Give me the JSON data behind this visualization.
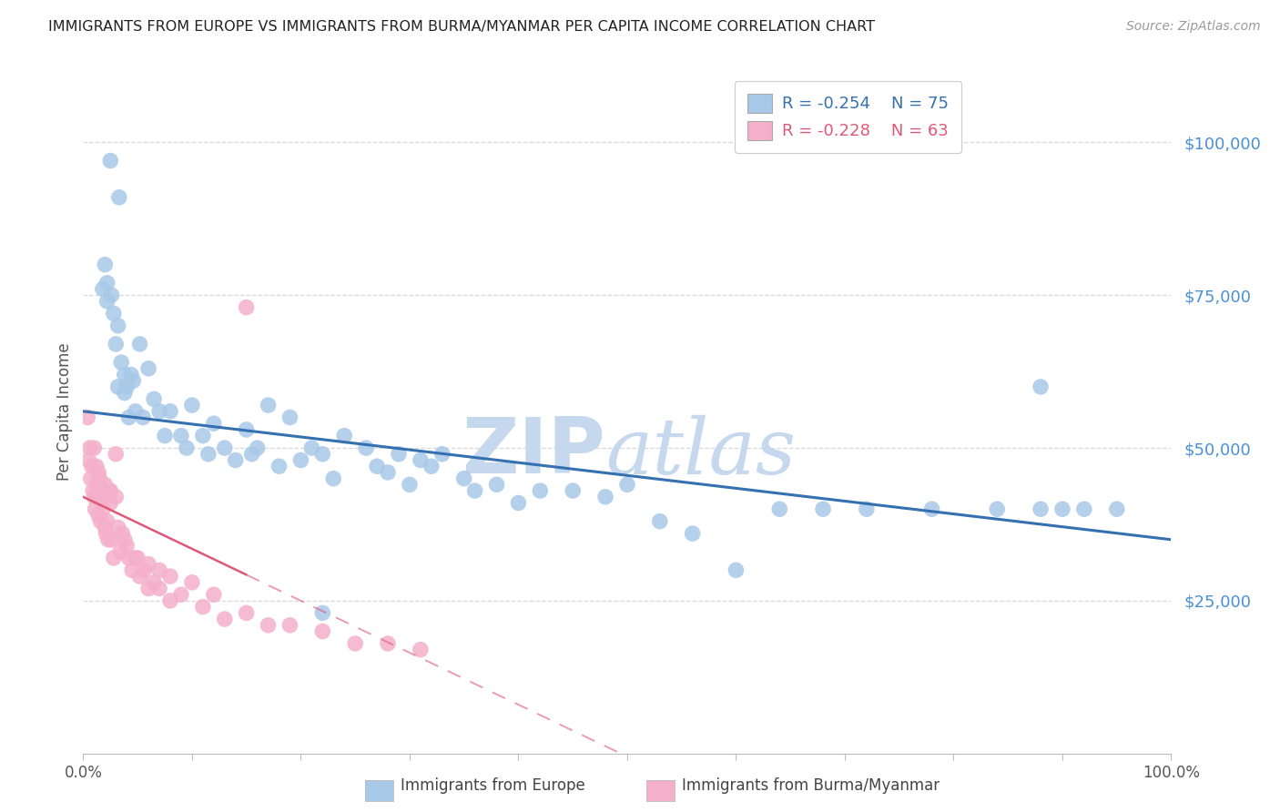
{
  "title": "IMMIGRANTS FROM EUROPE VS IMMIGRANTS FROM BURMA/MYANMAR PER CAPITA INCOME CORRELATION CHART",
  "source": "Source: ZipAtlas.com",
  "ylabel": "Per Capita Income",
  "yticks": [
    0,
    25000,
    50000,
    75000,
    100000
  ],
  "ytick_labels": [
    "",
    "$25,000",
    "$50,000",
    "$75,000",
    "$100,000"
  ],
  "xlim": [
    0.0,
    1.0
  ],
  "ylim": [
    0,
    112000
  ],
  "legend_europe_R": "-0.254",
  "legend_europe_N": "75",
  "legend_burma_R": "-0.228",
  "legend_burma_N": "63",
  "blue_scatter_color": "#a8c8e8",
  "pink_scatter_color": "#f4b0c8",
  "blue_line_color": "#3570b0",
  "pink_line_color": "#e05878",
  "title_color": "#222222",
  "axis_label_color": "#555555",
  "right_tick_color": "#4a90d9",
  "watermark_color": "#c5d8ed",
  "grid_color": "#d8d8d8",
  "europe_x": [
    0.025,
    0.033,
    0.02,
    0.022,
    0.018,
    0.022,
    0.026,
    0.028,
    0.032,
    0.03,
    0.035,
    0.032,
    0.038,
    0.038,
    0.04,
    0.042,
    0.044,
    0.046,
    0.048,
    0.052,
    0.055,
    0.06,
    0.065,
    0.07,
    0.075,
    0.08,
    0.09,
    0.095,
    0.1,
    0.11,
    0.115,
    0.12,
    0.13,
    0.14,
    0.15,
    0.155,
    0.16,
    0.17,
    0.18,
    0.19,
    0.2,
    0.21,
    0.22,
    0.23,
    0.24,
    0.26,
    0.27,
    0.28,
    0.29,
    0.3,
    0.31,
    0.32,
    0.33,
    0.35,
    0.36,
    0.38,
    0.4,
    0.42,
    0.45,
    0.48,
    0.5,
    0.53,
    0.56,
    0.6,
    0.64,
    0.68,
    0.72,
    0.78,
    0.84,
    0.88,
    0.9,
    0.92,
    0.95,
    0.88,
    0.22
  ],
  "europe_y": [
    97000,
    91000,
    80000,
    77000,
    76000,
    74000,
    75000,
    72000,
    70000,
    67000,
    64000,
    60000,
    62000,
    59000,
    60000,
    55000,
    62000,
    61000,
    56000,
    67000,
    55000,
    63000,
    58000,
    56000,
    52000,
    56000,
    52000,
    50000,
    57000,
    52000,
    49000,
    54000,
    50000,
    48000,
    53000,
    49000,
    50000,
    57000,
    47000,
    55000,
    48000,
    50000,
    49000,
    45000,
    52000,
    50000,
    47000,
    46000,
    49000,
    44000,
    48000,
    47000,
    49000,
    45000,
    43000,
    44000,
    41000,
    43000,
    43000,
    42000,
    44000,
    38000,
    36000,
    30000,
    40000,
    40000,
    40000,
    40000,
    40000,
    40000,
    40000,
    40000,
    40000,
    60000,
    23000
  ],
  "burma_x": [
    0.004,
    0.005,
    0.006,
    0.007,
    0.008,
    0.009,
    0.01,
    0.01,
    0.011,
    0.012,
    0.013,
    0.014,
    0.014,
    0.015,
    0.016,
    0.017,
    0.018,
    0.018,
    0.019,
    0.02,
    0.02,
    0.021,
    0.022,
    0.023,
    0.024,
    0.025,
    0.026,
    0.028,
    0.03,
    0.032,
    0.034,
    0.036,
    0.038,
    0.04,
    0.042,
    0.045,
    0.048,
    0.052,
    0.056,
    0.06,
    0.065,
    0.07,
    0.08,
    0.09,
    0.1,
    0.11,
    0.12,
    0.13,
    0.15,
    0.17,
    0.19,
    0.22,
    0.25,
    0.28,
    0.31,
    0.15,
    0.07,
    0.03,
    0.05,
    0.06,
    0.08,
    0.025,
    0.015
  ],
  "burma_y": [
    55000,
    48000,
    50000,
    45000,
    47000,
    43000,
    42000,
    50000,
    40000,
    47000,
    44000,
    46000,
    39000,
    42000,
    38000,
    43000,
    42000,
    40000,
    43000,
    44000,
    37000,
    36000,
    38000,
    35000,
    43000,
    41000,
    35000,
    32000,
    42000,
    37000,
    33000,
    36000,
    35000,
    34000,
    32000,
    30000,
    32000,
    29000,
    30000,
    31000,
    28000,
    27000,
    29000,
    26000,
    28000,
    24000,
    26000,
    22000,
    23000,
    21000,
    21000,
    20000,
    18000,
    18000,
    17000,
    73000,
    30000,
    49000,
    32000,
    27000,
    25000,
    43000,
    45000
  ]
}
